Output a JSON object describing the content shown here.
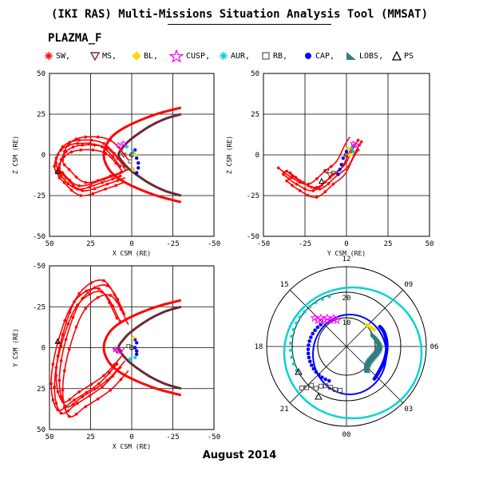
{
  "header": {
    "title": "(IKI RAS) Multi-Missions Situation Analysis Tool (MMSAT)",
    "instrument": "PLAZMA_F"
  },
  "footer": {
    "date": "August 2014"
  },
  "colors": {
    "SW": "#ff0000",
    "MS": "#7a2d2d",
    "BL": "#ffd700",
    "CUSP": "#ff00ff",
    "AUR": "#00cccc",
    "RB": "#555555",
    "CAP": "#0000ff",
    "LOBS": "#2f7f7f",
    "PS": "#000000",
    "magnetopause": "#6b2a35",
    "polar_ring": "#00d4d4"
  },
  "legend": [
    {
      "key": "SW",
      "label": "SW,",
      "icon": "red-asterisk"
    },
    {
      "key": "MS",
      "label": "MS,",
      "icon": "brown-down-triangle"
    },
    {
      "key": "BL",
      "label": "BL,",
      "icon": "yellow-diamond"
    },
    {
      "key": "CUSP",
      "label": "CUSP,",
      "icon": "magenta-star"
    },
    {
      "key": "AUR",
      "label": "AUR,",
      "icon": "cyan-asterisk"
    },
    {
      "key": "RB",
      "label": "RB,",
      "icon": "gray-square"
    },
    {
      "key": "CAP",
      "label": "CAP,",
      "icon": "blue-dot"
    },
    {
      "key": "LOBS",
      "label": "LOBS,",
      "icon": "teal-flag"
    },
    {
      "key": "PS",
      "label": "PS",
      "icon": "black-triangle"
    }
  ],
  "chart_data": [
    {
      "type": "scatter",
      "id": "xz",
      "xlabel": "X CSM (RE)",
      "ylabel": "Z CSM (RE)",
      "xlim": [
        50,
        -50
      ],
      "ylim": [
        -50,
        50
      ],
      "xticks": [
        50,
        25,
        0,
        -25,
        -50
      ],
      "yticks": [
        -50,
        -25,
        0,
        25,
        50
      ],
      "grid": true,
      "boundaries": [
        {
          "name": "",
          "x": [
            -30,
            -20,
            -10,
            0,
            5,
            8,
            5,
            0,
            -10,
            -20,
            -30
          ],
          "y": [
            -25,
            -22,
            -17,
            -10,
            -5,
            0,
            5,
            10,
            17,
            22,
            25
          ]
        },
        {
          "name": "",
          "x": [
            -30,
            -15,
            0,
            10,
            15,
            17,
            15,
            10,
            0,
            -15,
            -30
          ],
          "y": [
            -29,
            -25,
            -19,
            -13,
            -7,
            0,
            7,
            13,
            19,
            25,
            29
          ]
        }
      ],
      "orbit": {
        "x": [
          4,
          15,
          30,
          40,
          44,
          40,
          30,
          15,
          4
        ],
        "y": [
          -14,
          -18,
          -22,
          -14,
          -8,
          2,
          6,
          4,
          -8
        ]
      }
    },
    {
      "type": "scatter",
      "id": "yz",
      "xlabel": "Y CSM (RE)",
      "ylabel": "Z CSM (RE)",
      "xlim": [
        -50,
        50
      ],
      "ylim": [
        -50,
        50
      ],
      "xticks": [
        -50,
        -25,
        0,
        25,
        50
      ],
      "yticks": [
        -50,
        -25,
        0,
        25,
        50
      ],
      "grid": true,
      "orbit": {
        "x": [
          -38,
          -30,
          -20,
          -10,
          -3,
          2,
          5
        ],
        "y": [
          -12,
          -18,
          -22,
          -14,
          -8,
          2,
          7
        ]
      }
    },
    {
      "type": "scatter",
      "id": "xy",
      "xlabel": "X CSM (RE)",
      "ylabel": "Y CSM (RE)",
      "xlim": [
        50,
        -50
      ],
      "ylim": [
        50,
        -50
      ],
      "xticks": [
        50,
        25,
        0,
        -25,
        -50
      ],
      "yticks": [
        -50,
        -25,
        0,
        25,
        50
      ],
      "grid": true,
      "boundaries": [
        {
          "name": "",
          "x": [
            -30,
            -20,
            -10,
            0,
            5,
            8,
            5,
            0,
            -10,
            -20,
            -30
          ],
          "y": [
            -25,
            -22,
            -17,
            -10,
            -5,
            0,
            5,
            10,
            17,
            22,
            25
          ]
        },
        {
          "name": "",
          "x": [
            -30,
            -15,
            0,
            10,
            15,
            17,
            15,
            10,
            0,
            -15,
            -30
          ],
          "y": [
            -29,
            -25,
            -19,
            -13,
            -7,
            0,
            7,
            13,
            19,
            25,
            29
          ]
        }
      ],
      "orbit": {
        "x": [
          4,
          15,
          30,
          40,
          44,
          40,
          30,
          15,
          4
        ],
        "y": [
          8,
          20,
          30,
          36,
          20,
          -5,
          -30,
          -38,
          -20
        ]
      }
    },
    {
      "type": "scatter",
      "id": "polar",
      "mlt_labels": [
        "12",
        "09",
        "06",
        "03",
        "00",
        "21",
        "18",
        "15"
      ],
      "radial_labels": [
        "20",
        "10"
      ],
      "footprint_ring": {
        "name": ""
      },
      "points": []
    }
  ]
}
